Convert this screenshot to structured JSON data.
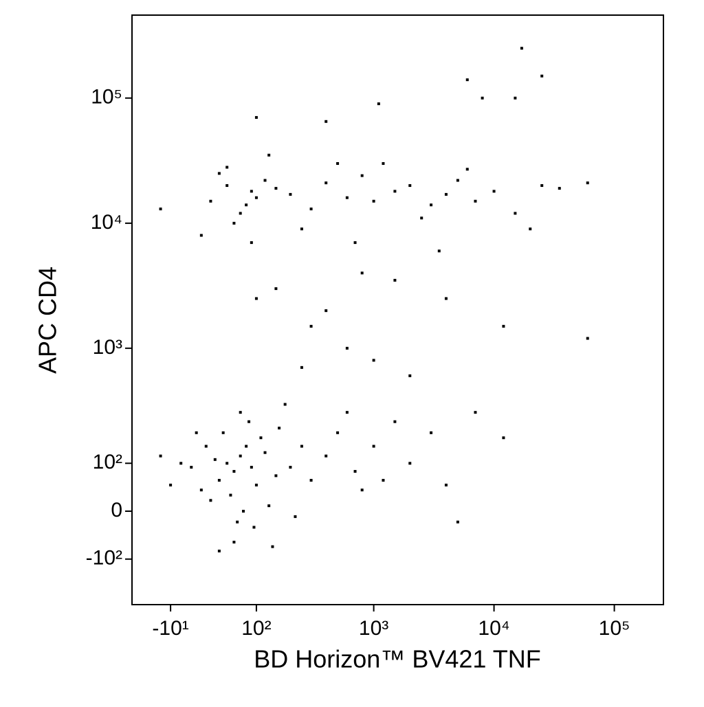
{
  "chart_data": {
    "type": "scatter",
    "xlabel": "BD Horizon™ BV421 TNF",
    "ylabel": "APC CD4",
    "xscale": "biexponential",
    "yscale": "biexponential",
    "xlim": [
      -54,
      256000
    ],
    "ylim": [
      -270,
      460000
    ],
    "xticks": [
      {
        "value": -10,
        "label": "-10¹"
      },
      {
        "value": 100,
        "label": "10²"
      },
      {
        "value": 1000,
        "label": "10³"
      },
      {
        "value": 10000,
        "label": "10⁴"
      },
      {
        "value": 100000,
        "label": "10⁵"
      }
    ],
    "yticks": [
      {
        "value": 100000,
        "label": "10⁵"
      },
      {
        "value": 10000,
        "label": "10⁴"
      },
      {
        "value": 1000,
        "label": "10³"
      },
      {
        "value": 100,
        "label": "10²"
      },
      0,
      {
        "value": -100,
        "label": "-10²"
      }
    ],
    "color": "#000000",
    "x": [
      50,
      60,
      70,
      40,
      80,
      55,
      65,
      45,
      90,
      100,
      35,
      75,
      85,
      120,
      150,
      60,
      30,
      110,
      70,
      95,
      130,
      200,
      250,
      300,
      400,
      500,
      700,
      1000,
      1500,
      2000,
      40,
      25,
      20,
      180,
      220,
      160,
      140,
      600,
      800,
      1200,
      3000,
      5000,
      10,
      15,
      0,
      -10,
      -20,
      30,
      50,
      70,
      90,
      40,
      60,
      100,
      120,
      80,
      150,
      200,
      300,
      400,
      600,
      800,
      1000,
      1500,
      2000,
      3000,
      4000,
      5000,
      7000,
      10000,
      15000,
      20000,
      25000,
      35000,
      60000,
      20,
      -20,
      250,
      700,
      1200,
      2500,
      6000,
      130,
      90,
      50,
      3500,
      500,
      150,
      400,
      800,
      1500,
      300,
      600,
      1000,
      2000,
      100,
      250,
      4000,
      12000,
      60000,
      7000,
      12000,
      4000,
      17000,
      25000,
      6000,
      15000,
      1100,
      100,
      400,
      8000
    ],
    "y": [
      100,
      80,
      120,
      60,
      150,
      30,
      -20,
      200,
      90,
      50,
      110,
      0,
      250,
      130,
      70,
      -60,
      20,
      180,
      300,
      -30,
      10,
      90,
      150,
      60,
      120,
      200,
      80,
      150,
      250,
      100,
      -80,
      150,
      40,
      350,
      -10,
      220,
      -70,
      300,
      40,
      60,
      200,
      -20,
      90,
      200,
      100,
      50,
      120,
      15000,
      20000,
      12000,
      18000,
      25000,
      10000,
      16000,
      22000,
      14000,
      19000,
      17000,
      13000,
      21000,
      16000,
      24000,
      15000,
      18000,
      20000,
      14000,
      17000,
      22000,
      15000,
      18000,
      12000,
      9000,
      20000,
      19000,
      21000,
      8000,
      13000,
      9000,
      7000,
      30000,
      11000,
      27000,
      35000,
      7000,
      28000,
      6000,
      30000,
      3000,
      2000,
      4000,
      3500,
      1500,
      1000,
      800,
      600,
      2500,
      700,
      2500,
      1500,
      1200,
      300,
      180,
      50,
      250000,
      150000,
      140000,
      100000,
      90000,
      70000,
      65000,
      100000
    ]
  }
}
